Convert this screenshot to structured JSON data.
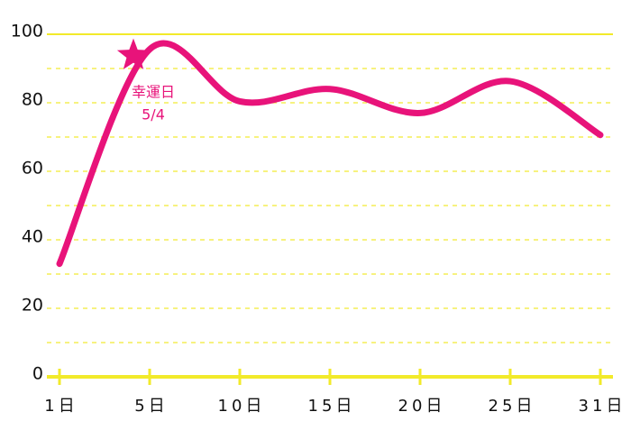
{
  "chart_data": {
    "type": "line",
    "categories": [
      "1日",
      "5日",
      "10日",
      "15日",
      "20日",
      "25日",
      "31日"
    ],
    "series": [
      {
        "color": "#e8137a",
        "values": [
          33,
          95.6,
          80.4,
          84,
          77,
          86.3,
          70.6
        ]
      }
    ],
    "ylim": [
      0,
      100
    ],
    "yticks": [
      0,
      20,
      40,
      60,
      80,
      100
    ],
    "minor_yticks": [
      10,
      30,
      50,
      70,
      90
    ],
    "grid": true,
    "grid_color": "#f2ea2a",
    "axis_color": "#f2ea2a",
    "annotation": {
      "lines": [
        "幸運日",
        "5/4"
      ],
      "value": 93.8,
      "color": "#e8137a"
    }
  }
}
